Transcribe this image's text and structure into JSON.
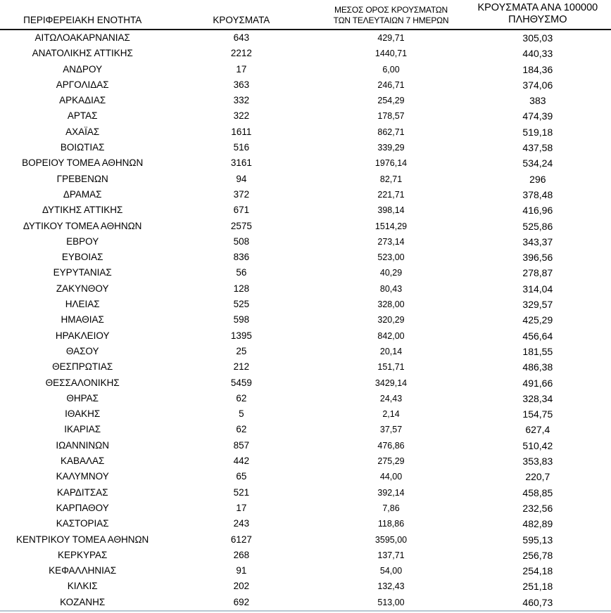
{
  "chart_data": {
    "type": "table",
    "grid": "header-rule-only",
    "text_color": "#000000",
    "header_rule_color": "#141414",
    "bottom_rule_color": "#b8c6d1",
    "columns": [
      {
        "id": "region",
        "lines": [
          "ΠΕΡΙΦΕΡΕΙΑΚΗ ΕΝΟΤΗΤΑ"
        ]
      },
      {
        "id": "cases",
        "lines": [
          "ΚΡΟΥΣΜΑΤΑ"
        ]
      },
      {
        "id": "avg7",
        "lines": [
          "ΜΕΣΟΣ ΟΡΟΣ ΚΡΟΥΣΜΑΤΩΝ",
          "ΤΩΝ ΤΕΛΕΥΤΑΙΩΝ 7 ΗΜΕΡΩΝ"
        ]
      },
      {
        "id": "per100k",
        "lines": [
          "ΚΡΟΥΣΜΑΤΑ ΑΝΑ 100000",
          "ΠΛΗΘΥΣΜΟ"
        ]
      }
    ],
    "rows": [
      {
        "region": "ΑΙΤΩΛΟΑΚΑΡΝΑΝΙΑΣ",
        "cases": "643",
        "avg7": "429,71",
        "per100k": "305,03"
      },
      {
        "region": "ΑΝΑΤΟΛΙΚΗΣ ΑΤΤΙΚΗΣ",
        "cases": "2212",
        "avg7": "1440,71",
        "per100k": "440,33"
      },
      {
        "region": "ΑΝΔΡΟΥ",
        "cases": "17",
        "avg7": "6,00",
        "per100k": "184,36"
      },
      {
        "region": "ΑΡΓΟΛΙΔΑΣ",
        "cases": "363",
        "avg7": "246,71",
        "per100k": "374,06"
      },
      {
        "region": "ΑΡΚΑΔΙΑΣ",
        "cases": "332",
        "avg7": "254,29",
        "per100k": "383"
      },
      {
        "region": "ΑΡΤΑΣ",
        "cases": "322",
        "avg7": "178,57",
        "per100k": "474,39"
      },
      {
        "region": "ΑΧΑΪΑΣ",
        "cases": "1611",
        "avg7": "862,71",
        "per100k": "519,18"
      },
      {
        "region": "ΒΟΙΩΤΙΑΣ",
        "cases": "516",
        "avg7": "339,29",
        "per100k": "437,58"
      },
      {
        "region": "ΒΟΡΕΙΟΥ ΤΟΜΕΑ ΑΘΗΝΩΝ",
        "cases": "3161",
        "avg7": "1976,14",
        "per100k": "534,24"
      },
      {
        "region": "ΓΡΕΒΕΝΩΝ",
        "cases": "94",
        "avg7": "82,71",
        "per100k": "296"
      },
      {
        "region": "ΔΡΑΜΑΣ",
        "cases": "372",
        "avg7": "221,71",
        "per100k": "378,48"
      },
      {
        "region": "ΔΥΤΙΚΗΣ ΑΤΤΙΚΗΣ",
        "cases": "671",
        "avg7": "398,14",
        "per100k": "416,96"
      },
      {
        "region": "ΔΥΤΙΚΟΥ ΤΟΜΕΑ ΑΘΗΝΩΝ",
        "cases": "2575",
        "avg7": "1514,29",
        "per100k": "525,86"
      },
      {
        "region": "ΕΒΡΟΥ",
        "cases": "508",
        "avg7": "273,14",
        "per100k": "343,37"
      },
      {
        "region": "ΕΥΒΟΙΑΣ",
        "cases": "836",
        "avg7": "523,00",
        "per100k": "396,56"
      },
      {
        "region": "ΕΥΡΥΤΑΝΙΑΣ",
        "cases": "56",
        "avg7": "40,29",
        "per100k": "278,87"
      },
      {
        "region": "ΖΑΚΥΝΘΟΥ",
        "cases": "128",
        "avg7": "80,43",
        "per100k": "314,04"
      },
      {
        "region": "ΗΛΕΙΑΣ",
        "cases": "525",
        "avg7": "328,00",
        "per100k": "329,57"
      },
      {
        "region": "ΗΜΑΘΙΑΣ",
        "cases": "598",
        "avg7": "320,29",
        "per100k": "425,29"
      },
      {
        "region": "ΗΡΑΚΛΕΙΟΥ",
        "cases": "1395",
        "avg7": "842,00",
        "per100k": "456,64"
      },
      {
        "region": "ΘΑΣΟΥ",
        "cases": "25",
        "avg7": "20,14",
        "per100k": "181,55"
      },
      {
        "region": "ΘΕΣΠΡΩΤΙΑΣ",
        "cases": "212",
        "avg7": "151,71",
        "per100k": "486,38"
      },
      {
        "region": "ΘΕΣΣΑΛΟΝΙΚΗΣ",
        "cases": "5459",
        "avg7": "3429,14",
        "per100k": "491,66"
      },
      {
        "region": "ΘΗΡΑΣ",
        "cases": "62",
        "avg7": "24,43",
        "per100k": "328,34"
      },
      {
        "region": "ΙΘΑΚΗΣ",
        "cases": "5",
        "avg7": "2,14",
        "per100k": "154,75"
      },
      {
        "region": "ΙΚΑΡΙΑΣ",
        "cases": "62",
        "avg7": "37,57",
        "per100k": "627,4"
      },
      {
        "region": "ΙΩΑΝΝΙΝΩΝ",
        "cases": "857",
        "avg7": "476,86",
        "per100k": "510,42"
      },
      {
        "region": "ΚΑΒΑΛΑΣ",
        "cases": "442",
        "avg7": "275,29",
        "per100k": "353,83"
      },
      {
        "region": "ΚΑΛΥΜΝΟΥ",
        "cases": "65",
        "avg7": "44,00",
        "per100k": "220,7"
      },
      {
        "region": "ΚΑΡΔΙΤΣΑΣ",
        "cases": "521",
        "avg7": "392,14",
        "per100k": "458,85"
      },
      {
        "region": "ΚΑΡΠΑΘΟΥ",
        "cases": "17",
        "avg7": "7,86",
        "per100k": "232,56"
      },
      {
        "region": "ΚΑΣΤΟΡΙΑΣ",
        "cases": "243",
        "avg7": "118,86",
        "per100k": "482,89"
      },
      {
        "region": "ΚΕΝΤΡΙΚΟΥ ΤΟΜΕΑ ΑΘΗΝΩΝ",
        "cases": "6127",
        "avg7": "3595,00",
        "per100k": "595,13"
      },
      {
        "region": "ΚΕΡΚΥΡΑΣ",
        "cases": "268",
        "avg7": "137,71",
        "per100k": "256,78"
      },
      {
        "region": "ΚΕΦΑΛΛΗΝΙΑΣ",
        "cases": "91",
        "avg7": "54,00",
        "per100k": "254,18"
      },
      {
        "region": "ΚΙΛΚΙΣ",
        "cases": "202",
        "avg7": "132,43",
        "per100k": "251,18"
      },
      {
        "region": "ΚΟΖΑΝΗΣ",
        "cases": "692",
        "avg7": "513,00",
        "per100k": "460,73"
      }
    ]
  }
}
